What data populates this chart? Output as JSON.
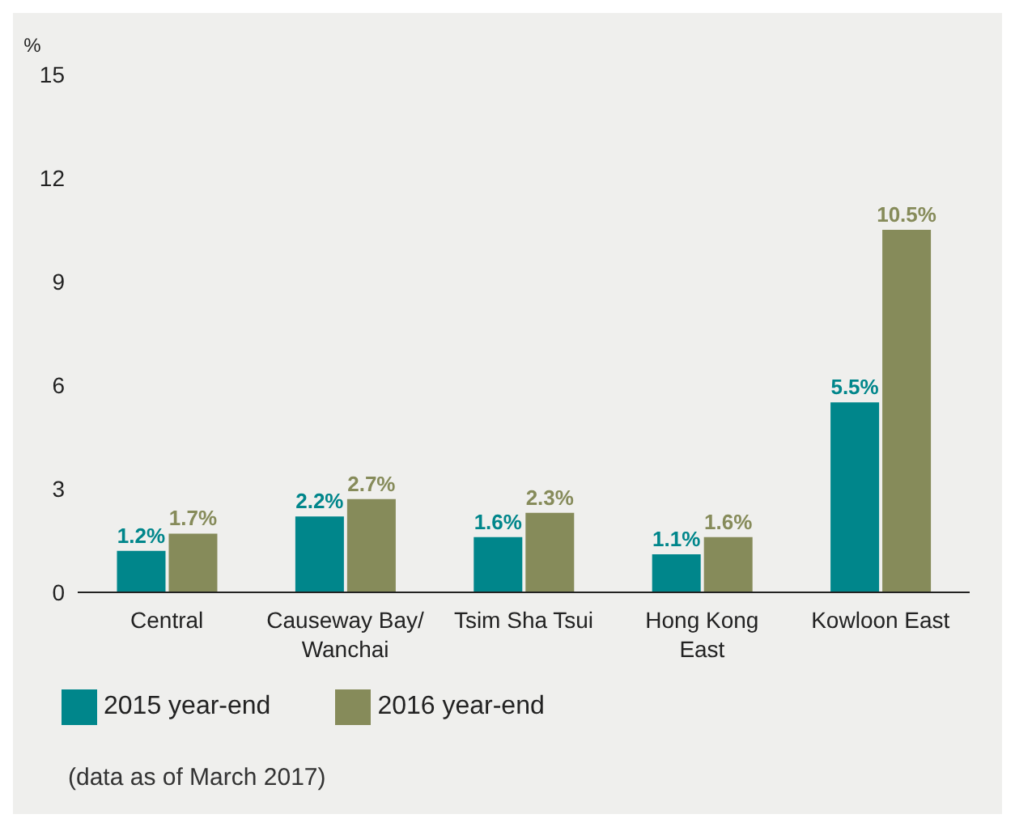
{
  "chart_data": {
    "type": "bar",
    "ylabel": "%",
    "categories": [
      "Central",
      "Causeway Bay/ Wanchai",
      "Tsim Sha Tsui",
      "Hong Kong East",
      "Kowloon East"
    ],
    "series": [
      {
        "name": "2015 year-end",
        "color": "#00868b",
        "values": [
          1.2,
          2.2,
          1.6,
          1.1,
          5.5
        ],
        "value_labels": [
          "1.2%",
          "2.2%",
          "1.6%",
          "1.1%",
          "5.5%"
        ]
      },
      {
        "name": "2016 year-end",
        "color": "#868b5a",
        "values": [
          1.7,
          2.7,
          2.3,
          1.6,
          10.5
        ],
        "value_labels": [
          "1.7%",
          "2.7%",
          "2.3%",
          "1.6%",
          "10.5%"
        ]
      }
    ],
    "ylim": [
      0,
      15
    ],
    "yticks": [
      0,
      3,
      6,
      9,
      12,
      15
    ],
    "grid": false,
    "legend": "bottom left",
    "annotations": [
      "(data as of March 2017)"
    ]
  }
}
